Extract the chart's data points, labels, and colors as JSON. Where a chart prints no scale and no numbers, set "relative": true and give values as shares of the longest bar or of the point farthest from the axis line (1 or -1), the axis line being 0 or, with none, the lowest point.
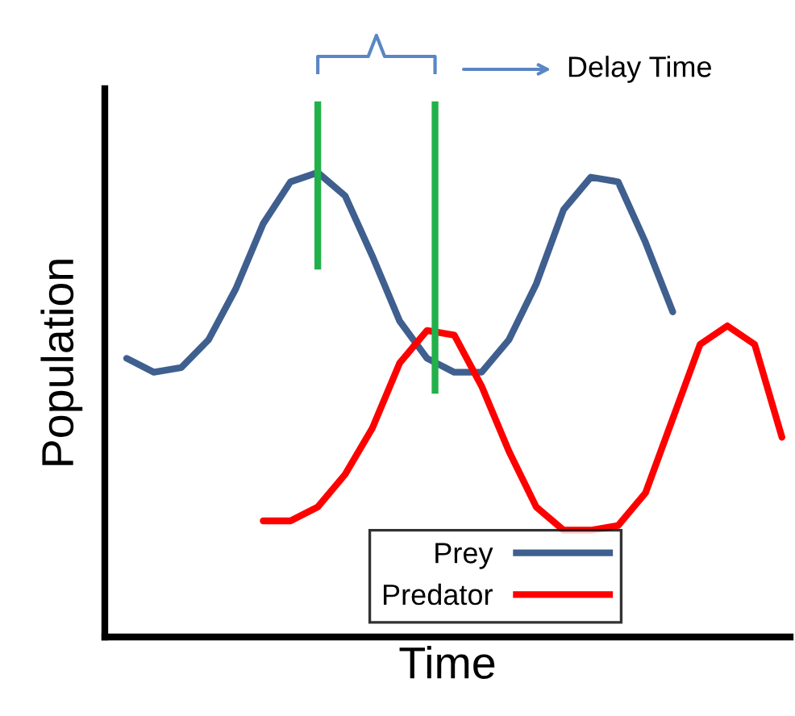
{
  "chart_data": {
    "type": "line",
    "relative": true,
    "xlabel": "Time",
    "ylabel": "Population",
    "annotations": [
      "Delay Time"
    ],
    "legend": "bottom",
    "marker": "none",
    "line_style": "solid",
    "categories": [
      null,
      null,
      null,
      null,
      null,
      null,
      null,
      null,
      null,
      null,
      null,
      null,
      null,
      null,
      null,
      null,
      null,
      null,
      null,
      null,
      null,
      null,
      null,
      null,
      null
    ],
    "series": [
      {
        "name": "Prey",
        "color": "#3f5f8f",
        "values": [
          0.6,
          0.57,
          0.58,
          0.64,
          0.75,
          0.89,
          0.98,
          1,
          0.95,
          0.82,
          0.68,
          0.6,
          0.57,
          0.57,
          0.64,
          0.76,
          0.92,
          0.99,
          0.98,
          0.85,
          0.7,
          null,
          null,
          null,
          null
        ]
      },
      {
        "name": "Predator",
        "color": "#ff0000",
        "values": [
          null,
          null,
          null,
          null,
          null,
          0.25,
          0.25,
          0.28,
          0.35,
          0.45,
          0.59,
          0.66,
          0.65,
          0.54,
          0.4,
          0.28,
          0.23,
          0.23,
          0.24,
          0.31,
          0.47,
          0.63,
          0.67,
          0.63,
          0.43
        ]
      }
    ]
  }
}
